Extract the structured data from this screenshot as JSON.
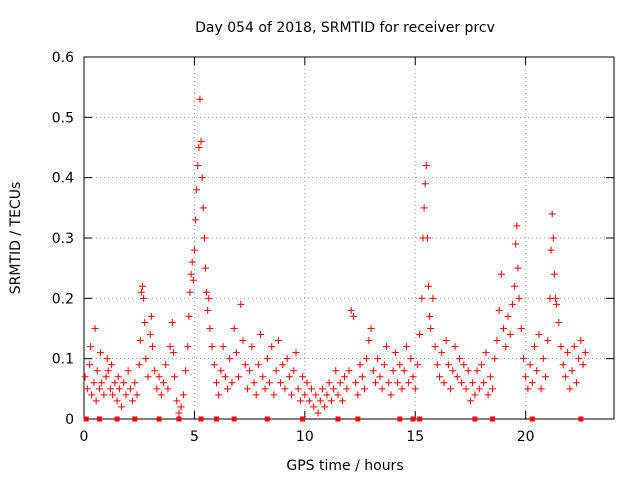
{
  "chart_data": {
    "type": "scatter",
    "title": "Day 054 of 2018, SRMTID for receiver prcv",
    "xlabel": "GPS time / hours",
    "ylabel": "SRMTID / TECUs",
    "xlim": [
      0,
      24
    ],
    "ylim": [
      0,
      0.6
    ],
    "xticks": [
      0,
      5,
      10,
      15,
      20
    ],
    "yticks": [
      0,
      0.1,
      0.2,
      0.3,
      0.4,
      0.5,
      0.6
    ],
    "xtick_labels": [
      "0",
      "5",
      "10",
      "15",
      "20"
    ],
    "ytick_labels": [
      "0",
      "0.1",
      "0.2",
      "0.3",
      "0.4",
      "0.5",
      "0.6"
    ],
    "grid": true,
    "marker": "+",
    "color": "#ff0000",
    "series": [
      {
        "name": "SRMTID",
        "points": [
          [
            0.05,
            0.07
          ],
          [
            0.15,
            0.05
          ],
          [
            0.25,
            0.09
          ],
          [
            0.3,
            0.12
          ],
          [
            0.35,
            0.04
          ],
          [
            0.45,
            0.06
          ],
          [
            0.5,
            0.15
          ],
          [
            0.55,
            0.03
          ],
          [
            0.6,
            0.08
          ],
          [
            0.7,
            0.05
          ],
          [
            0.75,
            0.11
          ],
          [
            0.8,
            0.06
          ],
          [
            0.9,
            0.04
          ],
          [
            1.0,
            0.07
          ],
          [
            1.05,
            0.1
          ],
          [
            1.1,
            0.08
          ],
          [
            1.2,
            0.05
          ],
          [
            1.25,
            0.09
          ],
          [
            1.3,
            0.04
          ],
          [
            1.4,
            0.06
          ],
          [
            1.5,
            0.03
          ],
          [
            1.55,
            0.07
          ],
          [
            1.6,
            0.05
          ],
          [
            1.7,
            0.02
          ],
          [
            1.8,
            0.06
          ],
          [
            1.9,
            0.04
          ],
          [
            2.0,
            0.08
          ],
          [
            2.1,
            0.05
          ],
          [
            2.2,
            0.03
          ],
          [
            2.3,
            0.06
          ],
          [
            2.4,
            0.04
          ],
          [
            2.5,
            0.09
          ],
          [
            2.55,
            0.13
          ],
          [
            2.6,
            0.21
          ],
          [
            2.65,
            0.22
          ],
          [
            2.7,
            0.2
          ],
          [
            2.75,
            0.16
          ],
          [
            2.8,
            0.1
          ],
          [
            2.9,
            0.07
          ],
          [
            3.0,
            0.14
          ],
          [
            3.05,
            0.17
          ],
          [
            3.1,
            0.12
          ],
          [
            3.2,
            0.08
          ],
          [
            3.3,
            0.05
          ],
          [
            3.4,
            0.07
          ],
          [
            3.5,
            0.04
          ],
          [
            3.6,
            0.06
          ],
          [
            3.7,
            0.09
          ],
          [
            3.8,
            0.05
          ],
          [
            3.9,
            0.12
          ],
          [
            4.0,
            0.16
          ],
          [
            4.05,
            0.11
          ],
          [
            4.1,
            0.07
          ],
          [
            4.2,
            0.03
          ],
          [
            4.3,
            0.01
          ],
          [
            4.4,
            0.02
          ],
          [
            4.5,
            0.04
          ],
          [
            4.6,
            0.08
          ],
          [
            4.7,
            0.12
          ],
          [
            4.75,
            0.17
          ],
          [
            4.8,
            0.21
          ],
          [
            4.85,
            0.24
          ],
          [
            4.9,
            0.26
          ],
          [
            4.95,
            0.23
          ],
          [
            5.0,
            0.28
          ],
          [
            5.05,
            0.33
          ],
          [
            5.1,
            0.38
          ],
          [
            5.15,
            0.42
          ],
          [
            5.2,
            0.45
          ],
          [
            5.25,
            0.53
          ],
          [
            5.3,
            0.46
          ],
          [
            5.35,
            0.4
          ],
          [
            5.4,
            0.35
          ],
          [
            5.45,
            0.3
          ],
          [
            5.5,
            0.25
          ],
          [
            5.55,
            0.21
          ],
          [
            5.6,
            0.18
          ],
          [
            5.65,
            0.2
          ],
          [
            5.7,
            0.15
          ],
          [
            5.8,
            0.12
          ],
          [
            5.9,
            0.09
          ],
          [
            6.0,
            0.06
          ],
          [
            6.1,
            0.04
          ],
          [
            6.2,
            0.08
          ],
          [
            6.3,
            0.12
          ],
          [
            6.4,
            0.07
          ],
          [
            6.5,
            0.05
          ],
          [
            6.6,
            0.1
          ],
          [
            6.7,
            0.06
          ],
          [
            6.8,
            0.15
          ],
          [
            6.9,
            0.11
          ],
          [
            7.0,
            0.07
          ],
          [
            7.1,
            0.19
          ],
          [
            7.2,
            0.13
          ],
          [
            7.3,
            0.09
          ],
          [
            7.4,
            0.05
          ],
          [
            7.5,
            0.08
          ],
          [
            7.6,
            0.12
          ],
          [
            7.7,
            0.06
          ],
          [
            7.8,
            0.04
          ],
          [
            7.9,
            0.09
          ],
          [
            8.0,
            0.14
          ],
          [
            8.1,
            0.07
          ],
          [
            8.2,
            0.05
          ],
          [
            8.3,
            0.1
          ],
          [
            8.4,
            0.06
          ],
          [
            8.5,
            0.12
          ],
          [
            8.6,
            0.04
          ],
          [
            8.7,
            0.08
          ],
          [
            8.8,
            0.13
          ],
          [
            8.9,
            0.06
          ],
          [
            9.0,
            0.09
          ],
          [
            9.1,
            0.05
          ],
          [
            9.2,
            0.1
          ],
          [
            9.3,
            0.07
          ],
          [
            9.4,
            0.04
          ],
          [
            9.5,
            0.08
          ],
          [
            9.6,
            0.11
          ],
          [
            9.7,
            0.05
          ],
          [
            9.8,
            0.03
          ],
          [
            9.9,
            0.07
          ],
          [
            10.0,
            0.04
          ],
          [
            10.1,
            0.06
          ],
          [
            10.2,
            0.03
          ],
          [
            10.3,
            0.05
          ],
          [
            10.4,
            0.02
          ],
          [
            10.5,
            0.04
          ],
          [
            10.6,
            0.01
          ],
          [
            10.7,
            0.03
          ],
          [
            10.8,
            0.05
          ],
          [
            10.9,
            0.02
          ],
          [
            11.0,
            0.04
          ],
          [
            11.1,
            0.06
          ],
          [
            11.2,
            0.03
          ],
          [
            11.3,
            0.05
          ],
          [
            11.4,
            0.08
          ],
          [
            11.5,
            0.04
          ],
          [
            11.6,
            0.06
          ],
          [
            11.7,
            0.03
          ],
          [
            11.8,
            0.07
          ],
          [
            11.9,
            0.05
          ],
          [
            12.0,
            0.08
          ],
          [
            12.1,
            0.18
          ],
          [
            12.2,
            0.17
          ],
          [
            12.3,
            0.06
          ],
          [
            12.4,
            0.04
          ],
          [
            12.5,
            0.09
          ],
          [
            12.6,
            0.07
          ],
          [
            12.7,
            0.05
          ],
          [
            12.8,
            0.1
          ],
          [
            12.9,
            0.13
          ],
          [
            13.0,
            0.15
          ],
          [
            13.1,
            0.08
          ],
          [
            13.2,
            0.06
          ],
          [
            13.3,
            0.1
          ],
          [
            13.4,
            0.07
          ],
          [
            13.5,
            0.05
          ],
          [
            13.6,
            0.09
          ],
          [
            13.7,
            0.12
          ],
          [
            13.8,
            0.06
          ],
          [
            13.9,
            0.04
          ],
          [
            14.0,
            0.08
          ],
          [
            14.1,
            0.11
          ],
          [
            14.2,
            0.06
          ],
          [
            14.3,
            0.09
          ],
          [
            14.4,
            0.05
          ],
          [
            14.5,
            0.08
          ],
          [
            14.6,
            0.12
          ],
          [
            14.7,
            0.06
          ],
          [
            14.8,
            0.1
          ],
          [
            14.9,
            0.07
          ],
          [
            15.0,
            0.05
          ],
          [
            15.1,
            0.09
          ],
          [
            15.2,
            0.14
          ],
          [
            15.3,
            0.2
          ],
          [
            15.35,
            0.3
          ],
          [
            15.4,
            0.35
          ],
          [
            15.45,
            0.39
          ],
          [
            15.5,
            0.42
          ],
          [
            15.55,
            0.3
          ],
          [
            15.6,
            0.22
          ],
          [
            15.65,
            0.17
          ],
          [
            15.7,
            0.15
          ],
          [
            15.8,
            0.2
          ],
          [
            15.9,
            0.12
          ],
          [
            16.0,
            0.09
          ],
          [
            16.1,
            0.07
          ],
          [
            16.2,
            0.11
          ],
          [
            16.3,
            0.06
          ],
          [
            16.4,
            0.13
          ],
          [
            16.5,
            0.09
          ],
          [
            16.6,
            0.05
          ],
          [
            16.7,
            0.08
          ],
          [
            16.8,
            0.12
          ],
          [
            16.9,
            0.07
          ],
          [
            17.0,
            0.1
          ],
          [
            17.1,
            0.06
          ],
          [
            17.2,
            0.09
          ],
          [
            17.3,
            0.05
          ],
          [
            17.4,
            0.08
          ],
          [
            17.5,
            0.03
          ],
          [
            17.6,
            0.06
          ],
          [
            17.7,
            0.04
          ],
          [
            17.8,
            0.08
          ],
          [
            17.9,
            0.05
          ],
          [
            18.0,
            0.09
          ],
          [
            18.1,
            0.06
          ],
          [
            18.2,
            0.11
          ],
          [
            18.3,
            0.04
          ],
          [
            18.4,
            0.07
          ],
          [
            18.5,
            0.05
          ],
          [
            18.6,
            0.1
          ],
          [
            18.7,
            0.13
          ],
          [
            18.8,
            0.18
          ],
          [
            18.9,
            0.24
          ],
          [
            19.0,
            0.15
          ],
          [
            19.1,
            0.12
          ],
          [
            19.2,
            0.17
          ],
          [
            19.3,
            0.14
          ],
          [
            19.4,
            0.19
          ],
          [
            19.5,
            0.22
          ],
          [
            19.55,
            0.29
          ],
          [
            19.6,
            0.32
          ],
          [
            19.65,
            0.25
          ],
          [
            19.7,
            0.2
          ],
          [
            19.8,
            0.15
          ],
          [
            19.9,
            0.1
          ],
          [
            20.0,
            0.07
          ],
          [
            20.1,
            0.05
          ],
          [
            20.2,
            0.09
          ],
          [
            20.3,
            0.06
          ],
          [
            20.4,
            0.12
          ],
          [
            20.5,
            0.08
          ],
          [
            20.6,
            0.14
          ],
          [
            20.7,
            0.05
          ],
          [
            20.8,
            0.1
          ],
          [
            20.9,
            0.07
          ],
          [
            21.0,
            0.13
          ],
          [
            21.1,
            0.2
          ],
          [
            21.15,
            0.28
          ],
          [
            21.2,
            0.34
          ],
          [
            21.25,
            0.3
          ],
          [
            21.3,
            0.24
          ],
          [
            21.35,
            0.2
          ],
          [
            21.4,
            0.19
          ],
          [
            21.5,
            0.16
          ],
          [
            21.6,
            0.12
          ],
          [
            21.7,
            0.09
          ],
          [
            21.8,
            0.07
          ],
          [
            21.9,
            0.11
          ],
          [
            22.0,
            0.05
          ],
          [
            22.1,
            0.08
          ],
          [
            22.2,
            0.12
          ],
          [
            22.3,
            0.06
          ],
          [
            22.4,
            0.1
          ],
          [
            22.5,
            0.13
          ],
          [
            22.6,
            0.09
          ],
          [
            22.7,
            0.11
          ]
        ]
      }
    ],
    "zero_markers_x": [
      0.1,
      0.7,
      1.5,
      2.3,
      3.4,
      4.3,
      5.3,
      6.0,
      6.8,
      8.3,
      9.9,
      11.5,
      12.4,
      14.3,
      14.9,
      15.2,
      17.7,
      18.5,
      20.3,
      22.5
    ]
  }
}
